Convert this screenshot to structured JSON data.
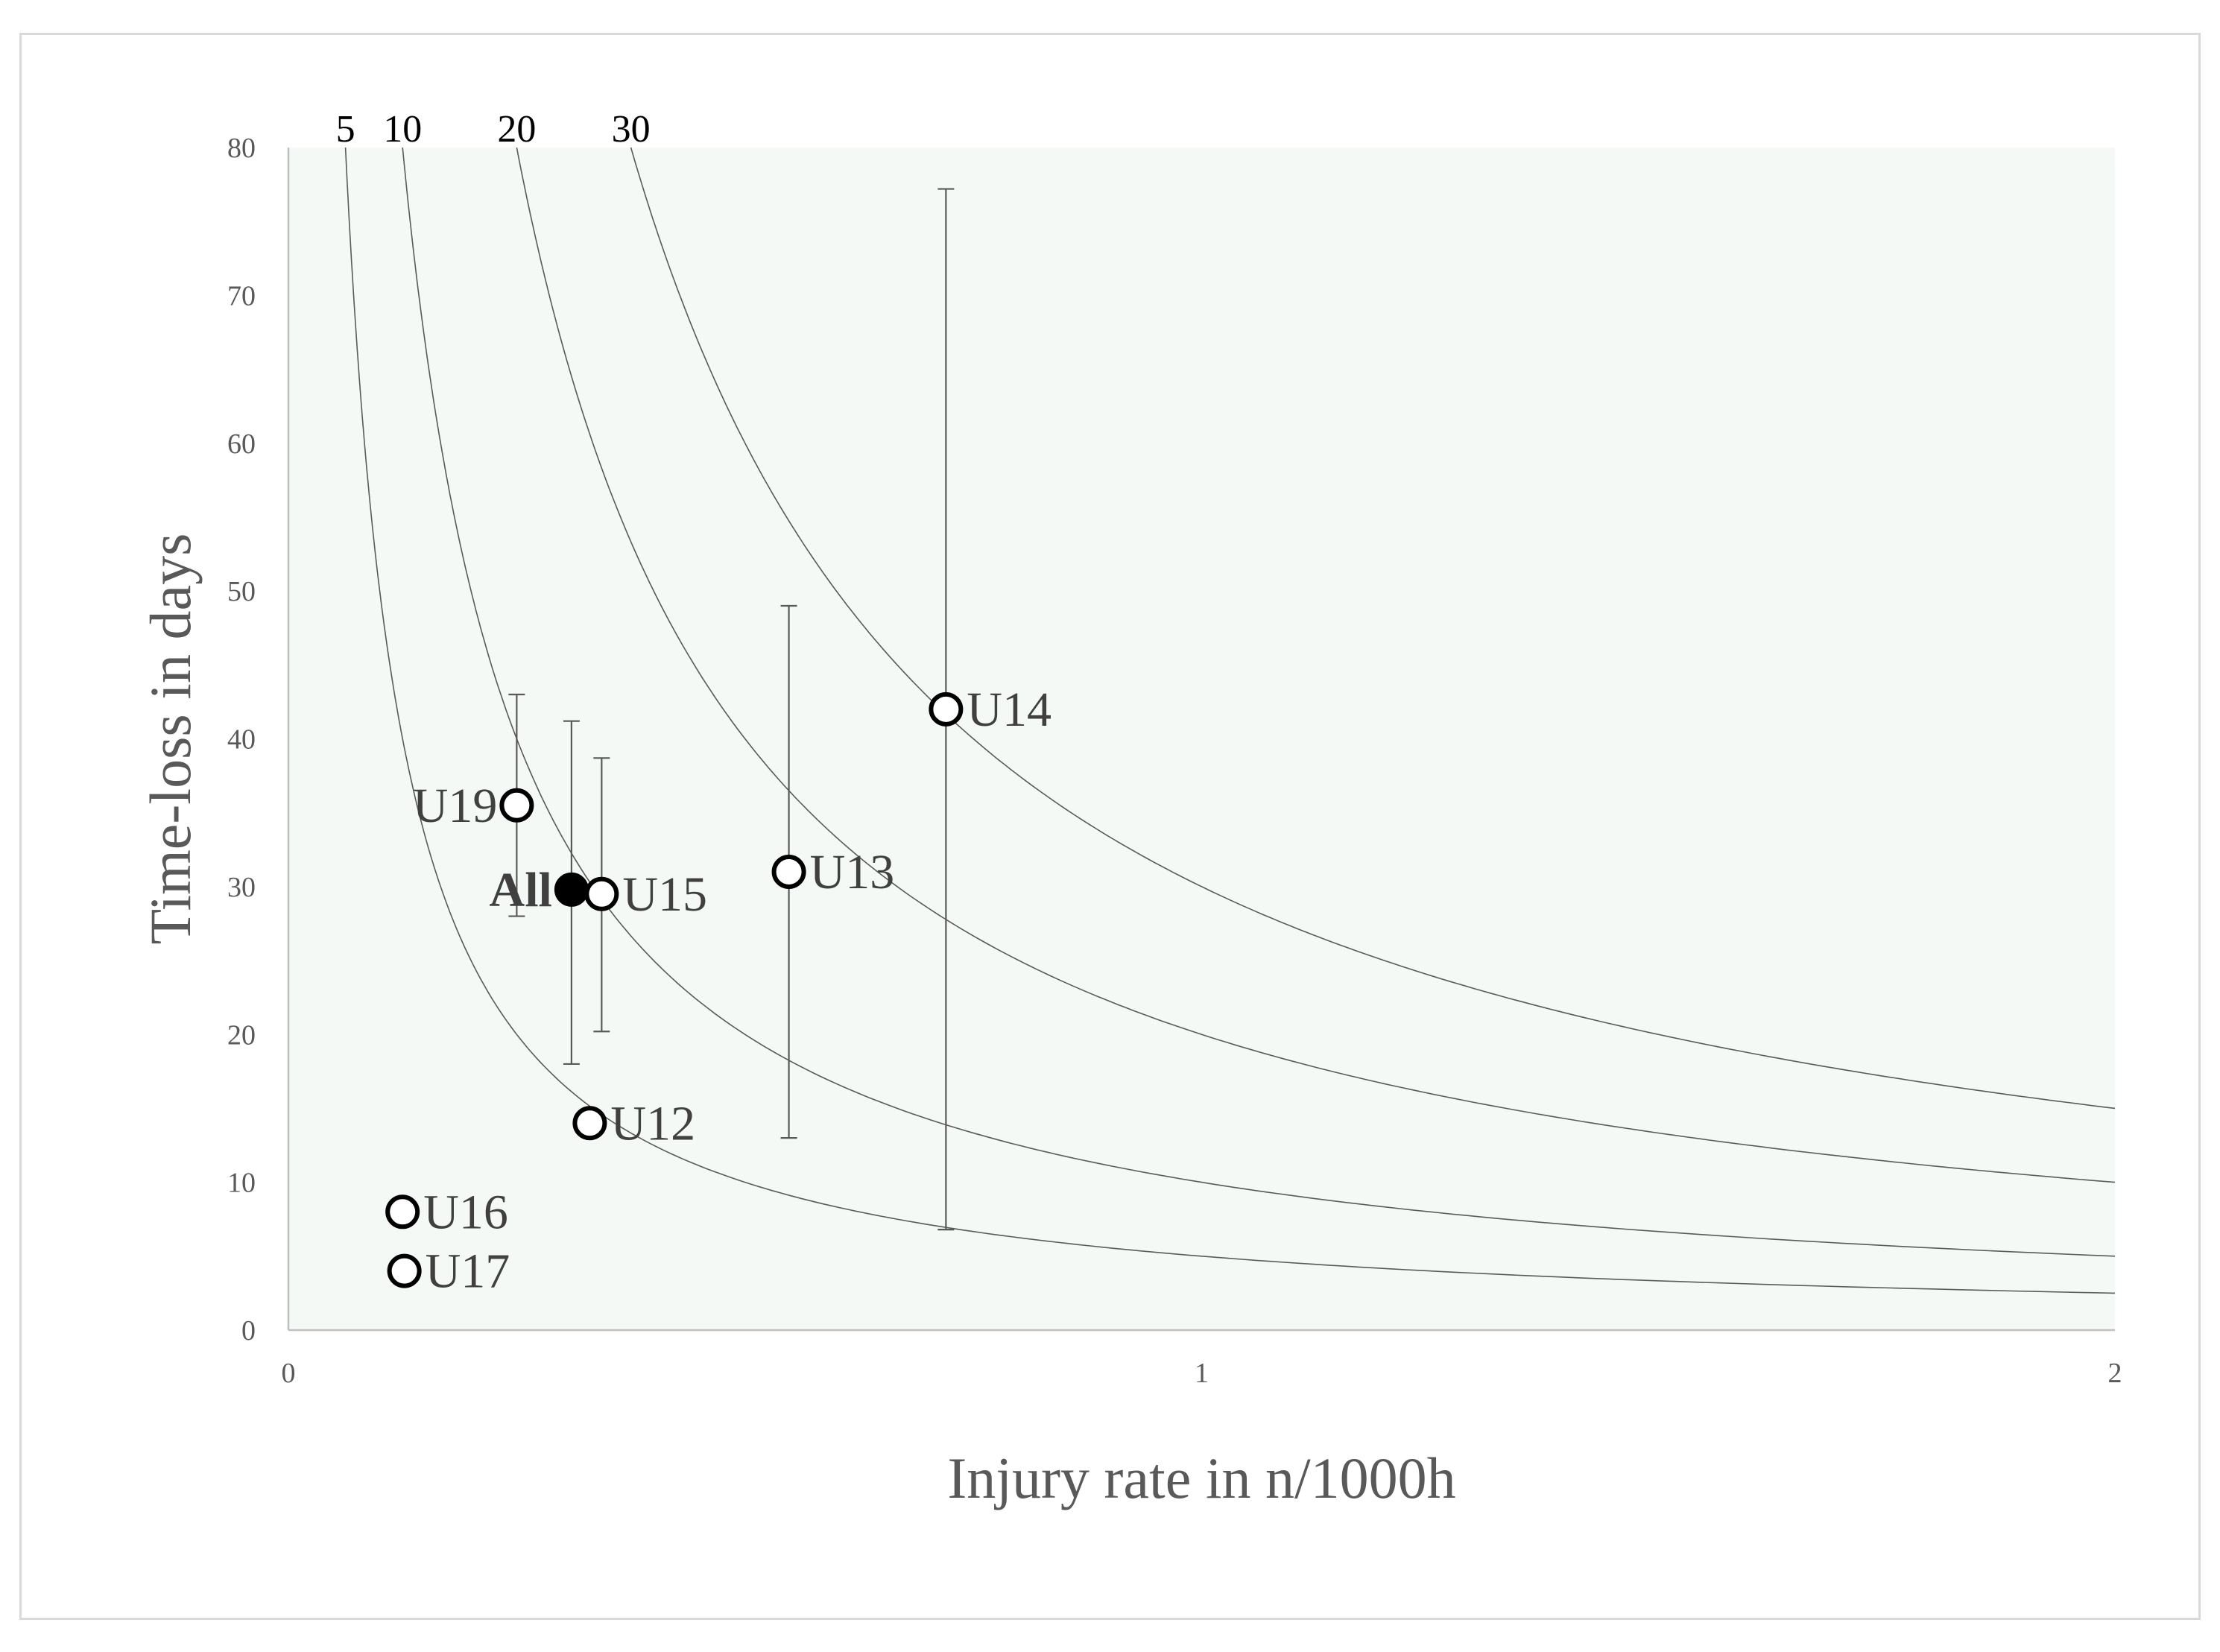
{
  "chart_data": {
    "type": "scatter",
    "xlabel": "Injury rate in n/1000h",
    "ylabel": "Time-loss in days",
    "xlim": [
      0,
      2
    ],
    "ylim": [
      0,
      80
    ],
    "x_ticks": [
      "0",
      "1",
      "2"
    ],
    "y_ticks": [
      "0",
      "10",
      "20",
      "30",
      "40",
      "50",
      "60",
      "70",
      "80"
    ],
    "plot_background": "#f5f9f5",
    "isolines": [
      {
        "label": "5",
        "burden": 5
      },
      {
        "label": "10",
        "burden": 10
      },
      {
        "label": "20",
        "burden": 20
      },
      {
        "label": "30",
        "burden": 30
      }
    ],
    "points": [
      {
        "label": "U19",
        "x": 0.25,
        "y": 35.5,
        "error_low": 28,
        "error_high": 43,
        "filled": false,
        "label_side": "left"
      },
      {
        "label": "All",
        "x": 0.31,
        "y": 29.8,
        "error_low": 18,
        "error_high": 41.2,
        "filled": true,
        "label_side": "left"
      },
      {
        "label": "U15",
        "x": 0.343,
        "y": 29.5,
        "error_low": 20.2,
        "error_high": 38.7,
        "filled": false,
        "label_side": "right"
      },
      {
        "label": "U13",
        "x": 0.548,
        "y": 31,
        "error_low": 13,
        "error_high": 49,
        "filled": false,
        "label_side": "right"
      },
      {
        "label": "U14",
        "x": 0.72,
        "y": 42,
        "error_low": 6.8,
        "error_high": 77.2,
        "filled": false,
        "label_side": "right"
      },
      {
        "label": "U12",
        "x": 0.33,
        "y": 14,
        "filled": false,
        "label_side": "right"
      },
      {
        "label": "U16",
        "x": 0.125,
        "y": 8,
        "filled": false,
        "label_side": "right"
      },
      {
        "label": "U17",
        "x": 0.127,
        "y": 4,
        "filled": false,
        "label_side": "right"
      }
    ]
  }
}
